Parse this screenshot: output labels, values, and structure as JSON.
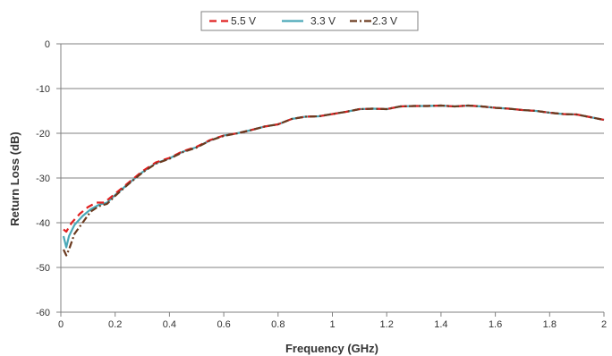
{
  "chart_data": {
    "type": "line",
    "title": "",
    "xlabel": "Frequency (GHz)",
    "ylabel": "Return Loss (dB)",
    "xlim": [
      0,
      2
    ],
    "ylim": [
      -60,
      0
    ],
    "x_ticks": [
      "0",
      "0.2",
      "0.4",
      "0.6",
      "0.8",
      "1",
      "1.2",
      "1.4",
      "1.6",
      "1.8",
      "2"
    ],
    "y_ticks": [
      "0",
      "-10",
      "-20",
      "-30",
      "-40",
      "-50",
      "-60"
    ],
    "grid": "horizontal",
    "legend": "top-center",
    "series": [
      {
        "name": "5.5 V",
        "color": "#e02020",
        "style": "dashed",
        "points": [
          [
            0.01,
            -41.5
          ],
          [
            0.02,
            -42
          ],
          [
            0.04,
            -40
          ],
          [
            0.07,
            -38
          ],
          [
            0.1,
            -36.5
          ],
          [
            0.13,
            -35.5
          ],
          [
            0.16,
            -35.5
          ],
          [
            0.2,
            -33.5
          ],
          [
            0.25,
            -31
          ],
          [
            0.3,
            -28.5
          ],
          [
            0.35,
            -26.5
          ],
          [
            0.4,
            -25.5
          ],
          [
            0.45,
            -24
          ],
          [
            0.5,
            -23
          ],
          [
            0.55,
            -21.5
          ],
          [
            0.6,
            -20.5
          ],
          [
            0.65,
            -20
          ],
          [
            0.7,
            -19.3
          ],
          [
            0.75,
            -18.5
          ],
          [
            0.8,
            -18
          ],
          [
            0.85,
            -16.8
          ],
          [
            0.9,
            -16.3
          ],
          [
            0.95,
            -16.2
          ],
          [
            1.0,
            -15.7
          ],
          [
            1.05,
            -15.2
          ],
          [
            1.1,
            -14.6
          ],
          [
            1.15,
            -14.5
          ],
          [
            1.2,
            -14.6
          ],
          [
            1.25,
            -14
          ],
          [
            1.3,
            -13.9
          ],
          [
            1.35,
            -13.9
          ],
          [
            1.4,
            -13.8
          ],
          [
            1.45,
            -14
          ],
          [
            1.5,
            -13.8
          ],
          [
            1.55,
            -14
          ],
          [
            1.6,
            -14.3
          ],
          [
            1.65,
            -14.5
          ],
          [
            1.7,
            -14.8
          ],
          [
            1.75,
            -15
          ],
          [
            1.8,
            -15.4
          ],
          [
            1.85,
            -15.7
          ],
          [
            1.9,
            -15.8
          ],
          [
            1.95,
            -16.4
          ],
          [
            2.0,
            -17
          ]
        ]
      },
      {
        "name": "3.3 V",
        "color": "#4aa8b8",
        "style": "solid",
        "points": [
          [
            0.01,
            -43
          ],
          [
            0.02,
            -45.5
          ],
          [
            0.03,
            -43
          ],
          [
            0.05,
            -40.5
          ],
          [
            0.08,
            -38.5
          ],
          [
            0.11,
            -37
          ],
          [
            0.14,
            -36
          ],
          [
            0.17,
            -35.5
          ],
          [
            0.2,
            -33.8
          ],
          [
            0.25,
            -31.2
          ],
          [
            0.3,
            -28.7
          ],
          [
            0.35,
            -26.7
          ],
          [
            0.4,
            -25.6
          ],
          [
            0.45,
            -24.1
          ],
          [
            0.5,
            -23.1
          ],
          [
            0.55,
            -21.6
          ],
          [
            0.6,
            -20.5
          ],
          [
            0.65,
            -20
          ],
          [
            0.7,
            -19.3
          ],
          [
            0.75,
            -18.5
          ],
          [
            0.8,
            -18
          ],
          [
            0.85,
            -16.8
          ],
          [
            0.9,
            -16.3
          ],
          [
            0.95,
            -16.2
          ],
          [
            1.0,
            -15.7
          ],
          [
            1.05,
            -15.2
          ],
          [
            1.1,
            -14.6
          ],
          [
            1.15,
            -14.5
          ],
          [
            1.2,
            -14.6
          ],
          [
            1.25,
            -14
          ],
          [
            1.3,
            -13.9
          ],
          [
            1.35,
            -13.9
          ],
          [
            1.4,
            -13.8
          ],
          [
            1.45,
            -14
          ],
          [
            1.5,
            -13.8
          ],
          [
            1.55,
            -14
          ],
          [
            1.6,
            -14.3
          ],
          [
            1.65,
            -14.5
          ],
          [
            1.7,
            -14.8
          ],
          [
            1.75,
            -15
          ],
          [
            1.8,
            -15.4
          ],
          [
            1.85,
            -15.7
          ],
          [
            1.9,
            -15.8
          ],
          [
            1.95,
            -16.4
          ],
          [
            2.0,
            -17
          ]
        ]
      },
      {
        "name": "2.3 V",
        "color": "#6b3a1f",
        "style": "dash-dot",
        "points": [
          [
            0.01,
            -46
          ],
          [
            0.02,
            -47.3
          ],
          [
            0.03,
            -46
          ],
          [
            0.05,
            -42.5
          ],
          [
            0.08,
            -40
          ],
          [
            0.11,
            -37.5
          ],
          [
            0.14,
            -36.3
          ],
          [
            0.17,
            -35.8
          ],
          [
            0.2,
            -34
          ],
          [
            0.25,
            -31.3
          ],
          [
            0.3,
            -28.8
          ],
          [
            0.35,
            -26.8
          ],
          [
            0.4,
            -25.7
          ],
          [
            0.45,
            -24.2
          ],
          [
            0.5,
            -23.2
          ],
          [
            0.55,
            -21.6
          ],
          [
            0.6,
            -20.6
          ],
          [
            0.65,
            -20
          ],
          [
            0.7,
            -19.3
          ],
          [
            0.75,
            -18.5
          ],
          [
            0.8,
            -18
          ],
          [
            0.85,
            -16.8
          ],
          [
            0.9,
            -16.3
          ],
          [
            0.95,
            -16.2
          ],
          [
            1.0,
            -15.7
          ],
          [
            1.05,
            -15.2
          ],
          [
            1.1,
            -14.6
          ],
          [
            1.15,
            -14.5
          ],
          [
            1.2,
            -14.6
          ],
          [
            1.25,
            -14
          ],
          [
            1.3,
            -13.9
          ],
          [
            1.35,
            -13.9
          ],
          [
            1.4,
            -13.8
          ],
          [
            1.45,
            -14
          ],
          [
            1.5,
            -13.8
          ],
          [
            1.55,
            -14
          ],
          [
            1.6,
            -14.3
          ],
          [
            1.65,
            -14.5
          ],
          [
            1.7,
            -14.8
          ],
          [
            1.75,
            -15
          ],
          [
            1.8,
            -15.4
          ],
          [
            1.85,
            -15.7
          ],
          [
            1.9,
            -15.8
          ],
          [
            1.95,
            -16.4
          ],
          [
            2.0,
            -17
          ]
        ]
      }
    ]
  }
}
